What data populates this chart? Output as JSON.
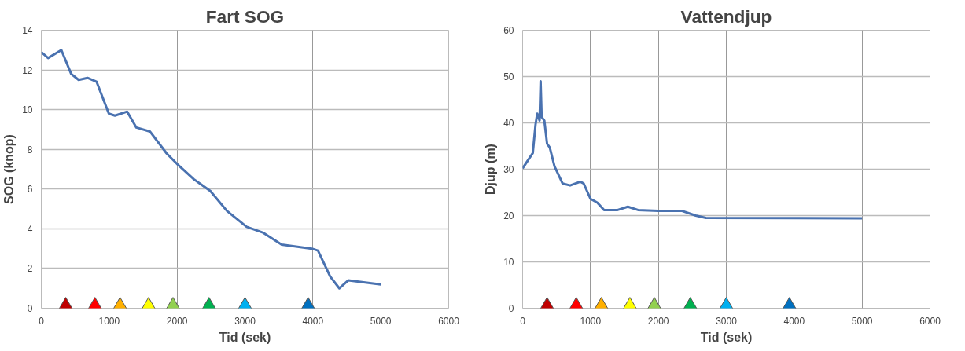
{
  "chart_data": [
    {
      "type": "line",
      "title": "Fart SOG",
      "xlabel": "Tid (sek)",
      "ylabel": "SOG (knop)",
      "xlim": [
        0,
        6000
      ],
      "xticks": [
        0,
        1000,
        2000,
        3000,
        4000,
        5000,
        6000
      ],
      "ylim": [
        0,
        14
      ],
      "yticks": [
        0,
        2,
        4,
        6,
        8,
        10,
        12,
        14
      ],
      "grid": true,
      "series": [
        {
          "color": "#4a72b0",
          "x": [
            0,
            100,
            295,
            440,
            550,
            680,
            815,
            995,
            1085,
            1265,
            1400,
            1600,
            1845,
            2020,
            2245,
            2490,
            2735,
            3025,
            3270,
            3540,
            3985,
            4075,
            4255,
            4390,
            4520,
            5000
          ],
          "values": [
            12.9,
            12.6,
            13.0,
            11.8,
            11.5,
            11.6,
            11.4,
            9.8,
            9.7,
            9.9,
            9.1,
            8.9,
            7.8,
            7.2,
            6.5,
            5.9,
            4.9,
            4.1,
            3.8,
            3.2,
            3.0,
            2.9,
            1.6,
            1.0,
            1.4,
            1.2
          ]
        },
        {
          "type": "scatter",
          "marker": "triangle",
          "x": [
            360,
            790,
            1160,
            1580,
            1940,
            2470,
            3000,
            3930
          ],
          "values": [
            0,
            0,
            0,
            0,
            0,
            0,
            0,
            0
          ],
          "colors": [
            "#c00000",
            "#ff0000",
            "#ffb000",
            "#ffff00",
            "#92d050",
            "#00b050",
            "#00b0f0",
            "#0070c0"
          ]
        }
      ]
    },
    {
      "type": "line",
      "title": "Vattendjup",
      "xlabel": "Tid (sek)",
      "ylabel": "Djup (m)",
      "xlim": [
        0,
        6000
      ],
      "xticks": [
        0,
        1000,
        2000,
        3000,
        4000,
        5000,
        6000
      ],
      "ylim": [
        0,
        60
      ],
      "yticks": [
        0,
        10,
        20,
        30,
        40,
        50,
        60
      ],
      "grid": true,
      "series": [
        {
          "color": "#4a72b0",
          "x": [
            0,
            150,
            190,
            215,
            250,
            265,
            280,
            320,
            360,
            400,
            470,
            590,
            700,
            850,
            900,
            1000,
            1100,
            1200,
            1400,
            1550,
            1700,
            2000,
            2350,
            2550,
            2700,
            5000
          ],
          "values": [
            30.2,
            33.5,
            39.6,
            42,
            40.5,
            49,
            41.3,
            40.5,
            35.5,
            34.7,
            30.6,
            26.9,
            26.5,
            27.3,
            26.9,
            23.6,
            22.8,
            21.2,
            21.2,
            21.9,
            21.2,
            21,
            21,
            20,
            19.5,
            19.4
          ]
        },
        {
          "type": "scatter",
          "marker": "triangle",
          "x": [
            360,
            790,
            1160,
            1580,
            1940,
            2470,
            3000,
            3930
          ],
          "values": [
            0,
            0,
            0,
            0,
            0,
            0,
            0,
            0
          ],
          "colors": [
            "#c00000",
            "#ff0000",
            "#ffb000",
            "#ffff00",
            "#92d050",
            "#00b050",
            "#00b0f0",
            "#0070c0"
          ]
        }
      ]
    }
  ]
}
